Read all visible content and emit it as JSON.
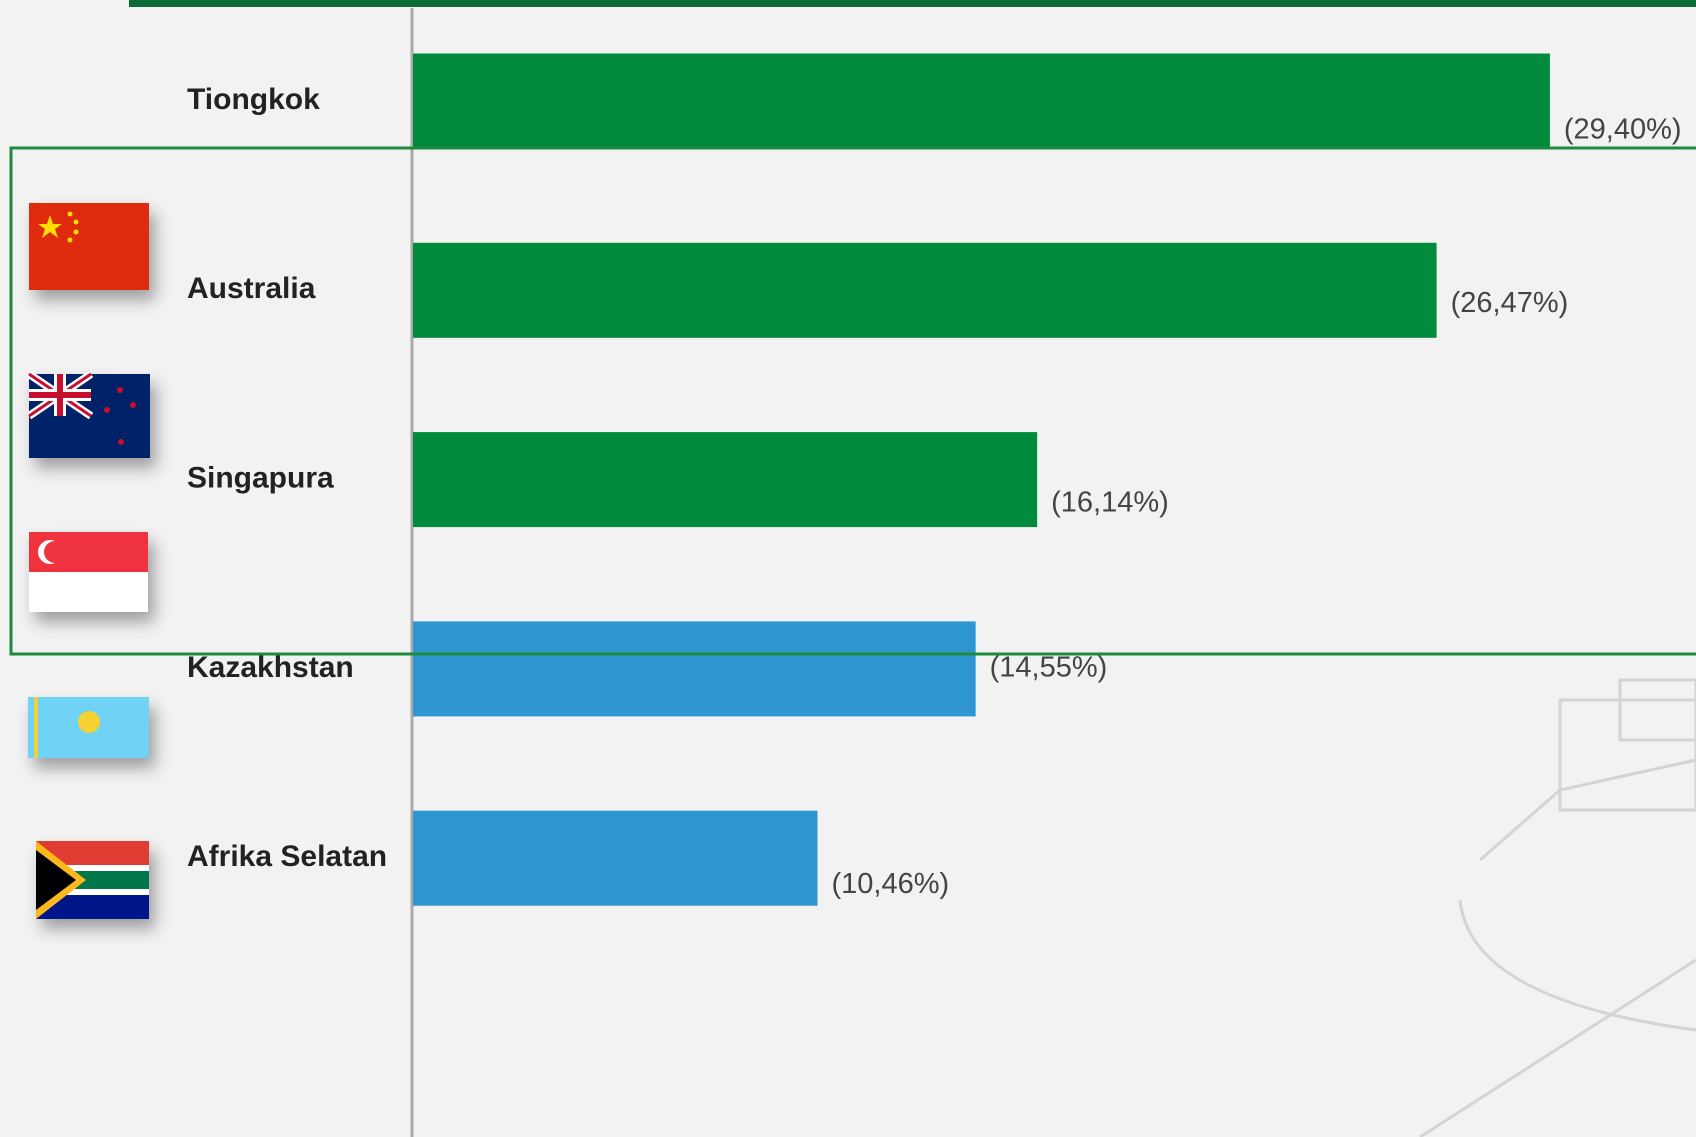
{
  "chart_data": {
    "type": "bar",
    "orientation": "horizontal",
    "categories": [
      "Tiongkok",
      "Australia",
      "Singapura",
      "Kazakhstan",
      "Afrika Selatan"
    ],
    "values": [
      29.4,
      26.47,
      16.14,
      14.55,
      10.46
    ],
    "value_labels": [
      "(29,40%)",
      "(26,47%)",
      "(16,14%)",
      "(14,55%)",
      "(10,46%)"
    ],
    "colors": [
      "#008a3c",
      "#008a3c",
      "#008a3c",
      "#2d95cf",
      "#2d95cf"
    ]
  }
}
